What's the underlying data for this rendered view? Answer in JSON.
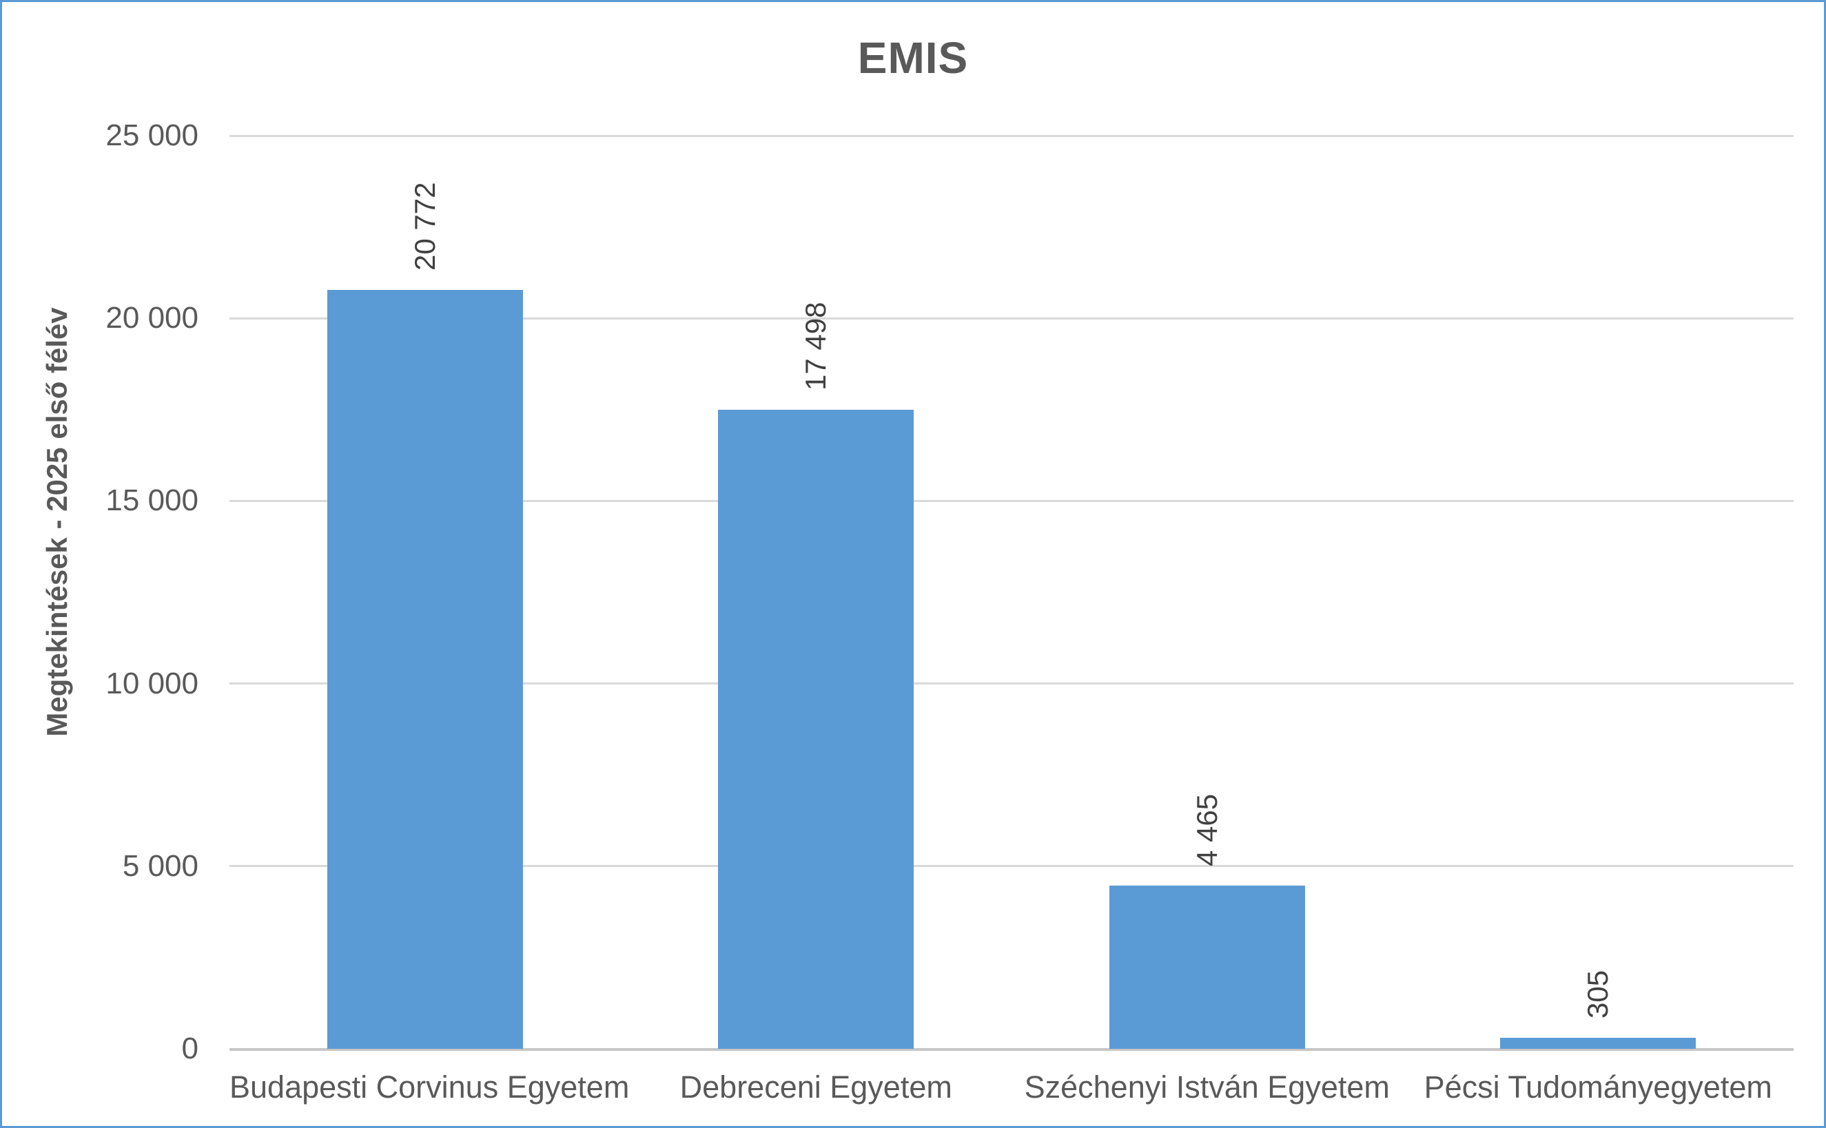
{
  "title": "EMIS",
  "colors": {
    "bar": "#5B9BD5",
    "chart_border": "#5B9BD5",
    "gridline": "#D9D9D9",
    "axis_text": "#595959",
    "data_label_text": "#404040"
  },
  "chart_data": {
    "type": "bar",
    "title": "EMIS",
    "xlabel": "",
    "ylabel": "Megtekintések - 2025 első félév",
    "categories": [
      "Budapesti Corvinus Egyetem",
      "Debreceni Egyetem",
      "Széchenyi István Egyetem",
      "Pécsi Tudományegyetem"
    ],
    "values": [
      20772,
      17498,
      4465,
      305
    ],
    "value_labels": [
      "20 772",
      "17 498",
      "4 465",
      "305"
    ],
    "ylim": [
      0,
      25000
    ],
    "yticks": [
      {
        "value": 0,
        "label": "0"
      },
      {
        "value": 5000,
        "label": "5 000"
      },
      {
        "value": 10000,
        "label": "10 000"
      },
      {
        "value": 15000,
        "label": "15 000"
      },
      {
        "value": 20000,
        "label": "20 000"
      },
      {
        "value": 25000,
        "label": "25 000"
      }
    ],
    "grid": "horizontal",
    "legend": "none",
    "data_label_rotation": 90
  }
}
